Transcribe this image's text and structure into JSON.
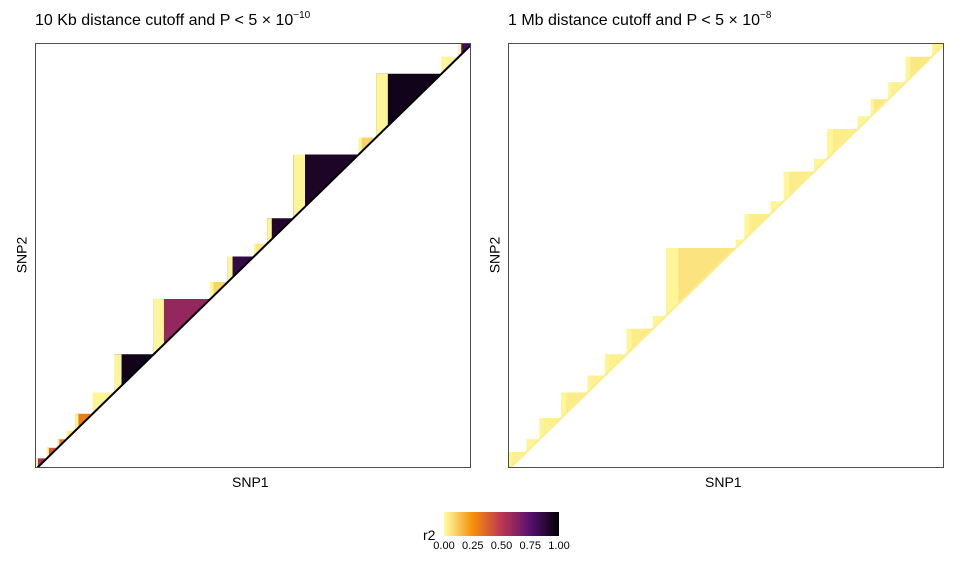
{
  "panels": [
    {
      "title_prefix": "10 Kb distance cutoff and P < 5 × 10",
      "title_exponent": "−10",
      "xlabel": "SNP1",
      "ylabel": "SNP2"
    },
    {
      "title_prefix": "1 Mb distance cutoff and P < 5 × 10",
      "title_exponent": "−8",
      "xlabel": "SNP1",
      "ylabel": "SNP2"
    }
  ],
  "legend": {
    "title": "r2",
    "ticks": [
      "0.00",
      "0.25",
      "0.50",
      "0.75",
      "1.00"
    ],
    "colors": [
      "#fcffa4",
      "#f98e09",
      "#bc3754",
      "#57106e",
      "#000004"
    ]
  },
  "chart_data": [
    {
      "type": "heatmap",
      "title": "10 Kb distance cutoff and P < 5 × 10^-10",
      "xlabel": "SNP1",
      "ylabel": "SNP2",
      "colorscale": "inferno",
      "color_range": [
        0,
        1
      ],
      "legend_title": "r2",
      "ld_blocks": [
        {
          "start": 0.0,
          "end": 0.025,
          "r2": 0.55
        },
        {
          "start": 0.025,
          "end": 0.05,
          "r2": 0.4
        },
        {
          "start": 0.05,
          "end": 0.07,
          "r2": 0.3
        },
        {
          "start": 0.07,
          "end": 0.09,
          "r2": 0.05
        },
        {
          "start": 0.09,
          "end": 0.13,
          "r2": 0.3
        },
        {
          "start": 0.13,
          "end": 0.18,
          "r2": 0.02
        },
        {
          "start": 0.18,
          "end": 0.27,
          "r2": 0.95
        },
        {
          "start": 0.27,
          "end": 0.4,
          "r2": 0.6
        },
        {
          "start": 0.4,
          "end": 0.44,
          "r2": 0.1
        },
        {
          "start": 0.44,
          "end": 0.5,
          "r2": 0.85
        },
        {
          "start": 0.5,
          "end": 0.53,
          "r2": 0.05
        },
        {
          "start": 0.53,
          "end": 0.59,
          "r2": 0.9
        },
        {
          "start": 0.59,
          "end": 0.74,
          "r2": 0.92
        },
        {
          "start": 0.74,
          "end": 0.78,
          "r2": 0.1
        },
        {
          "start": 0.78,
          "end": 0.93,
          "r2": 0.95
        },
        {
          "start": 0.93,
          "end": 0.97,
          "r2": 0.02
        },
        {
          "start": 0.97,
          "end": 1.0,
          "r2": 0.8
        }
      ]
    },
    {
      "type": "heatmap",
      "title": "1 Mb distance cutoff and P < 5 × 10^-8",
      "xlabel": "SNP1",
      "ylabel": "SNP2",
      "colorscale": "inferno",
      "color_range": [
        0,
        1
      ],
      "legend_title": "r2",
      "ld_blocks": [
        {
          "start": 0.0,
          "end": 0.04,
          "r2": 0.03
        },
        {
          "start": 0.04,
          "end": 0.07,
          "r2": 0.02
        },
        {
          "start": 0.07,
          "end": 0.12,
          "r2": 0.03
        },
        {
          "start": 0.12,
          "end": 0.18,
          "r2": 0.04
        },
        {
          "start": 0.18,
          "end": 0.22,
          "r2": 0.03
        },
        {
          "start": 0.22,
          "end": 0.27,
          "r2": 0.03
        },
        {
          "start": 0.27,
          "end": 0.33,
          "r2": 0.04
        },
        {
          "start": 0.33,
          "end": 0.36,
          "r2": 0.02
        },
        {
          "start": 0.36,
          "end": 0.52,
          "r2": 0.06
        },
        {
          "start": 0.52,
          "end": 0.54,
          "r2": 0.02
        },
        {
          "start": 0.54,
          "end": 0.6,
          "r2": 0.04
        },
        {
          "start": 0.6,
          "end": 0.63,
          "r2": 0.02
        },
        {
          "start": 0.63,
          "end": 0.7,
          "r2": 0.04
        },
        {
          "start": 0.7,
          "end": 0.73,
          "r2": 0.02
        },
        {
          "start": 0.73,
          "end": 0.8,
          "r2": 0.04
        },
        {
          "start": 0.8,
          "end": 0.83,
          "r2": 0.02
        },
        {
          "start": 0.83,
          "end": 0.87,
          "r2": 0.05
        },
        {
          "start": 0.87,
          "end": 0.91,
          "r2": 0.03
        },
        {
          "start": 0.91,
          "end": 0.97,
          "r2": 0.05
        },
        {
          "start": 0.97,
          "end": 1.0,
          "r2": 0.03
        }
      ]
    }
  ]
}
